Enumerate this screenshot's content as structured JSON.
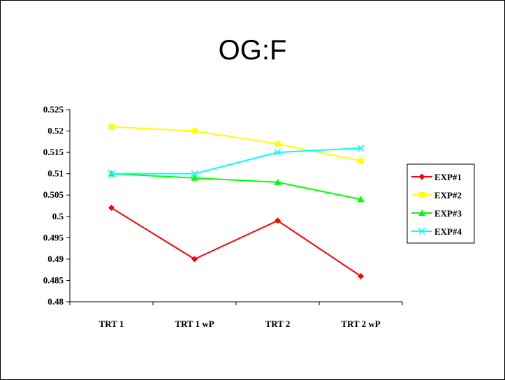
{
  "chart_data": {
    "type": "line",
    "title": "OG:F",
    "xlabel": "",
    "ylabel": "",
    "categories": [
      "TRT 1",
      "TRT 1 wP",
      "TRT 2",
      "TRT 2 wP"
    ],
    "ylim": [
      0.48,
      0.525
    ],
    "yticks": [
      "0.48",
      "0.485",
      "0.49",
      "0.495",
      "0.5",
      "0.505",
      "0.51",
      "0.515",
      "0.52",
      "0.525"
    ],
    "grid": false,
    "legend_position": "right",
    "series": [
      {
        "name": "EXP#1",
        "color": "#ff0000",
        "marker": "diamond",
        "values": [
          0.502,
          0.49,
          0.499,
          0.486
        ]
      },
      {
        "name": "EXP#2",
        "color": "#ffff00",
        "marker": "square",
        "values": [
          0.521,
          0.52,
          0.517,
          0.513
        ]
      },
      {
        "name": "EXP#3",
        "color": "#00ff00",
        "marker": "triangle",
        "values": [
          0.51,
          0.509,
          0.508,
          0.504
        ]
      },
      {
        "name": "EXP#4",
        "color": "#00ffff",
        "marker": "x",
        "values": [
          0.51,
          0.51,
          0.515,
          0.516
        ]
      }
    ]
  }
}
